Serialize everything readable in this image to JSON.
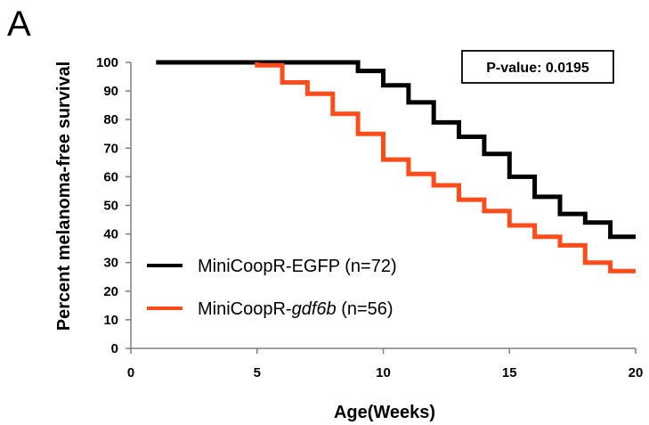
{
  "chart_data": {
    "type": "line",
    "panel_label": "A",
    "xlabel": "Age(Weeks)",
    "ylabel": "Percent melanoma-free survival",
    "xlim": [
      0,
      20
    ],
    "ylim": [
      0,
      100
    ],
    "xticks": [
      0,
      5,
      10,
      15,
      20
    ],
    "yticks": [
      0,
      10,
      20,
      30,
      40,
      50,
      60,
      70,
      80,
      90,
      100
    ],
    "grid": false,
    "legend_position": "bottom-left",
    "annotation": "P-value: 0.0195",
    "series": [
      {
        "name_prefix": "MiniCoopR-",
        "name_gene": "EGFP",
        "name_suffix": " (n=72)",
        "gene_italic": false,
        "color": "#000000",
        "step_points": [
          [
            1,
            100
          ],
          [
            9,
            100
          ],
          [
            9,
            97
          ],
          [
            10,
            97
          ],
          [
            10,
            92
          ],
          [
            11,
            92
          ],
          [
            11,
            86
          ],
          [
            12,
            86
          ],
          [
            12,
            79
          ],
          [
            13,
            79
          ],
          [
            13,
            74
          ],
          [
            14,
            74
          ],
          [
            14,
            68
          ],
          [
            15,
            68
          ],
          [
            15,
            60
          ],
          [
            16,
            60
          ],
          [
            16,
            53
          ],
          [
            17,
            53
          ],
          [
            17,
            47
          ],
          [
            18,
            47
          ],
          [
            18,
            44
          ],
          [
            19,
            44
          ],
          [
            19,
            39
          ],
          [
            20,
            39
          ]
        ]
      },
      {
        "name_prefix": "MiniCoopR-",
        "name_gene": "gdf6b",
        "name_suffix": " (n=56)",
        "gene_italic": true,
        "color": "#ff4c1a",
        "step_points": [
          [
            5,
            100
          ],
          [
            5,
            99
          ],
          [
            6,
            99
          ],
          [
            6,
            93
          ],
          [
            7,
            93
          ],
          [
            7,
            89
          ],
          [
            8,
            89
          ],
          [
            8,
            82
          ],
          [
            9,
            82
          ],
          [
            9,
            75
          ],
          [
            10,
            75
          ],
          [
            10,
            66
          ],
          [
            11,
            66
          ],
          [
            11,
            61
          ],
          [
            12,
            61
          ],
          [
            12,
            57
          ],
          [
            13,
            57
          ],
          [
            13,
            52
          ],
          [
            14,
            52
          ],
          [
            14,
            48
          ],
          [
            15,
            48
          ],
          [
            15,
            43
          ],
          [
            16,
            43
          ],
          [
            16,
            39
          ],
          [
            17,
            39
          ],
          [
            17,
            36
          ],
          [
            18,
            36
          ],
          [
            18,
            30
          ],
          [
            19,
            30
          ],
          [
            19,
            27
          ],
          [
            20,
            27
          ]
        ]
      }
    ]
  }
}
